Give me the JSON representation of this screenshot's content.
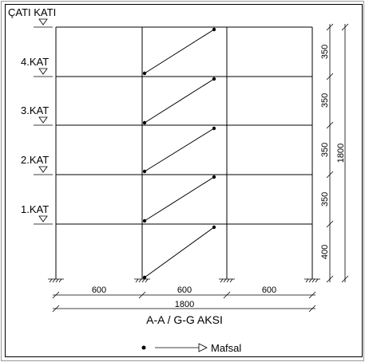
{
  "levels": {
    "roof": "ÇATI KATI",
    "floor4": "4.KAT",
    "floor3": "3.KAT",
    "floor2": "2.KAT",
    "floor1": "1.KAT"
  },
  "dimensions": {
    "bay_spans": [
      "600",
      "600",
      "600"
    ],
    "total_span": "1800",
    "story_heights": [
      "350",
      "350",
      "350",
      "350",
      "400"
    ],
    "total_height": "1800"
  },
  "axis_title": "A-A / G-G AKSI",
  "legend": {
    "label": "Mafsal"
  }
}
